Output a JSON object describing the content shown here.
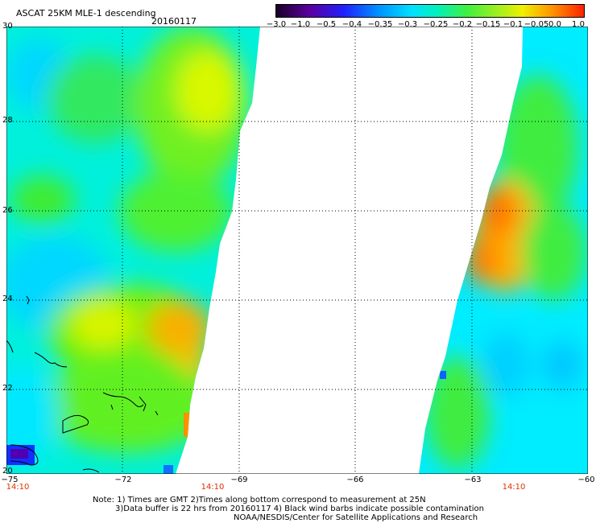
{
  "header": {
    "title": "ASCAT 25KM MLE-1 descending",
    "date": "20160117"
  },
  "colorbar": {
    "labels": [
      "−3.0",
      "−1.0",
      "−0.5",
      "−0.4",
      "−0.35",
      "−0.3",
      "−0.25",
      "−0.2",
      "−0.15",
      "−0.1",
      "−0.05",
      "0.0",
      "1.0"
    ]
  },
  "axes": {
    "x_labels": [
      "−75",
      "−72",
      "−69",
      "−66",
      "−63",
      "−60"
    ],
    "y_labels": [
      "30",
      "28",
      "26",
      "24",
      "22",
      "20"
    ],
    "time_labels": [
      "14:10",
      "14:10",
      "14:10"
    ]
  },
  "notes": {
    "line1": "Note: 1) Times are GMT 2)Times along bottom correspond to measurement at 25N",
    "line2": "3)Data buffer is 22 hrs from 20160117 4) Black wind barbs indicate possible contamination",
    "line3": "NOAA/NESDIS/Center for Satellite Applications and Research"
  }
}
